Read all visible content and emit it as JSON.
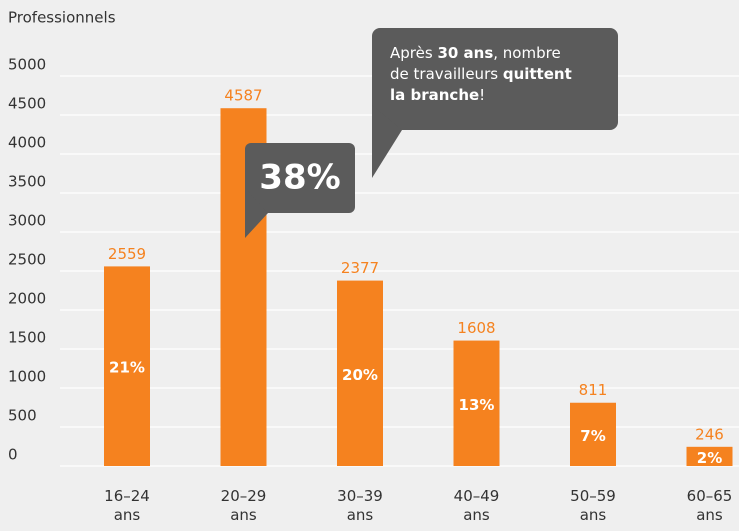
{
  "chart_data": {
    "type": "bar",
    "y_axis_label": "Professionnels",
    "categories": [
      "16–24 ans",
      "20–29 ans",
      "30–39 ans",
      "40–49 ans",
      "50–59 ans",
      "60–65 ans"
    ],
    "values": [
      2559,
      4587,
      2377,
      1608,
      811,
      246
    ],
    "share_labels": [
      "21%",
      "38%",
      "20%",
      "13%",
      "7%",
      "2%"
    ],
    "color": "#f5821f",
    "ylim": [
      0,
      5000
    ],
    "yticks": [
      0,
      500,
      1000,
      1500,
      2000,
      2500,
      3000,
      3500,
      4000,
      4500,
      5000
    ],
    "grid": true,
    "annotation": {
      "lines": [
        [
          {
            "text": "Après ",
            "bold": false
          },
          {
            "text": "30 ans",
            "bold": true
          },
          {
            "text": ", nombre",
            "bold": false
          }
        ],
        [
          {
            "text": "de travailleurs ",
            "bold": false
          },
          {
            "text": "quittent",
            "bold": true
          }
        ],
        [
          {
            "text": "la branche",
            "bold": true
          },
          {
            "text": "!",
            "bold": false
          }
        ]
      ]
    }
  }
}
